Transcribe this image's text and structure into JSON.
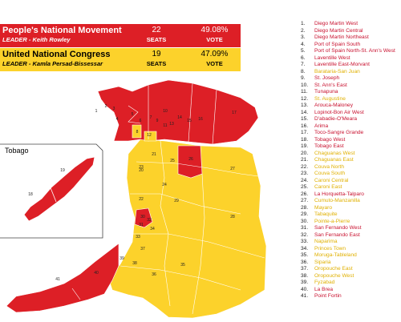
{
  "parties": [
    {
      "name": "People's National Movement",
      "leader": "LEADER - Keith Rowley",
      "seats": "22",
      "seats_unit": "SEATS",
      "vote": "49.08%",
      "vote_unit": "VOTE",
      "color": "#dd1f26"
    },
    {
      "name": "United National Congress",
      "leader": "LEADER - Kamla Persad-Bissessar",
      "seats": "19",
      "seats_unit": "SEATS",
      "vote": "47.09%",
      "vote_unit": "VOTE",
      "color": "#fcd22b"
    }
  ],
  "map": {
    "inset_label": "Tobago",
    "labels": [
      "1",
      "2",
      "3",
      "4",
      "5",
      "6",
      "7",
      "8",
      "9",
      "10",
      "11",
      "12",
      "13",
      "14",
      "15",
      "16",
      "17",
      "18",
      "19",
      "20",
      "21",
      "22",
      "23",
      "24",
      "25",
      "26",
      "27",
      "28",
      "29",
      "30",
      "31",
      "32",
      "33",
      "34",
      "35",
      "36",
      "37",
      "38",
      "39",
      "40",
      "41"
    ]
  },
  "constituencies": [
    {
      "num": "1.",
      "name": "Diego Martin West",
      "party": "pnm"
    },
    {
      "num": "2.",
      "name": "Diego Martin Central",
      "party": "pnm"
    },
    {
      "num": "3.",
      "name": "Diego Martin Northeast",
      "party": "pnm"
    },
    {
      "num": "4.",
      "name": "Port of Spain South",
      "party": "pnm"
    },
    {
      "num": "5.",
      "name": "Port of Spain North-St. Ann's West",
      "party": "pnm"
    },
    {
      "num": "6.",
      "name": "Laventille West",
      "party": "pnm"
    },
    {
      "num": "7.",
      "name": "Laventille East-Morvant",
      "party": "pnm"
    },
    {
      "num": "8.",
      "name": "Barataria-San Juan",
      "party": "unc"
    },
    {
      "num": "9.",
      "name": "St. Joseph",
      "party": "pnm"
    },
    {
      "num": "10.",
      "name": "St. Ann's East",
      "party": "pnm"
    },
    {
      "num": "11.",
      "name": "Tunapuna",
      "party": "pnm"
    },
    {
      "num": "12.",
      "name": "St. Augustine",
      "party": "unc"
    },
    {
      "num": "13.",
      "name": "Arouca-Maloney",
      "party": "pnm"
    },
    {
      "num": "14.",
      "name": "Lopinot-Bon Air West",
      "party": "pnm"
    },
    {
      "num": "15.",
      "name": "D'abadie-O'Meara",
      "party": "pnm"
    },
    {
      "num": "16.",
      "name": "Arima",
      "party": "pnm"
    },
    {
      "num": "17.",
      "name": "Toco-Sangre Grande",
      "party": "pnm"
    },
    {
      "num": "18.",
      "name": "Tobago West",
      "party": "pnm"
    },
    {
      "num": "19.",
      "name": "Tobago East",
      "party": "pnm"
    },
    {
      "num": "20.",
      "name": "Chaguanas West",
      "party": "unc"
    },
    {
      "num": "21.",
      "name": "Chaguanas East",
      "party": "unc"
    },
    {
      "num": "22.",
      "name": "Couva North",
      "party": "unc"
    },
    {
      "num": "23.",
      "name": "Couva South",
      "party": "unc"
    },
    {
      "num": "24.",
      "name": "Caroni Central",
      "party": "unc"
    },
    {
      "num": "25.",
      "name": "Caroni East",
      "party": "unc"
    },
    {
      "num": "26.",
      "name": "La Horquetta-Talparo",
      "party": "pnm"
    },
    {
      "num": "27.",
      "name": "Cumuto-Manzanilla",
      "party": "unc"
    },
    {
      "num": "28.",
      "name": "Mayaro",
      "party": "unc"
    },
    {
      "num": "29.",
      "name": "Tabaquite",
      "party": "unc"
    },
    {
      "num": "30.",
      "name": "Pointe-a-Pierre",
      "party": "unc"
    },
    {
      "num": "31.",
      "name": "San Fernando West",
      "party": "pnm"
    },
    {
      "num": "32.",
      "name": "San Fernando East",
      "party": "pnm"
    },
    {
      "num": "33.",
      "name": "Naparima",
      "party": "unc"
    },
    {
      "num": "34.",
      "name": "Princes Town",
      "party": "unc"
    },
    {
      "num": "35.",
      "name": "Moruga-Tableland",
      "party": "unc"
    },
    {
      "num": "36.",
      "name": "Siparia",
      "party": "unc"
    },
    {
      "num": "37.",
      "name": "Oropouche East",
      "party": "unc"
    },
    {
      "num": "38.",
      "name": "Oropouche West",
      "party": "unc"
    },
    {
      "num": "39.",
      "name": "Fyzabad",
      "party": "unc"
    },
    {
      "num": "40.",
      "name": "La Brea",
      "party": "pnm"
    },
    {
      "num": "41.",
      "name": "Point Fortin",
      "party": "pnm"
    }
  ],
  "colors": {
    "pnm": "#dd1f26",
    "unc": "#fcd22b",
    "pnm_text": "#c8102e",
    "unc_text": "#e0b000"
  }
}
